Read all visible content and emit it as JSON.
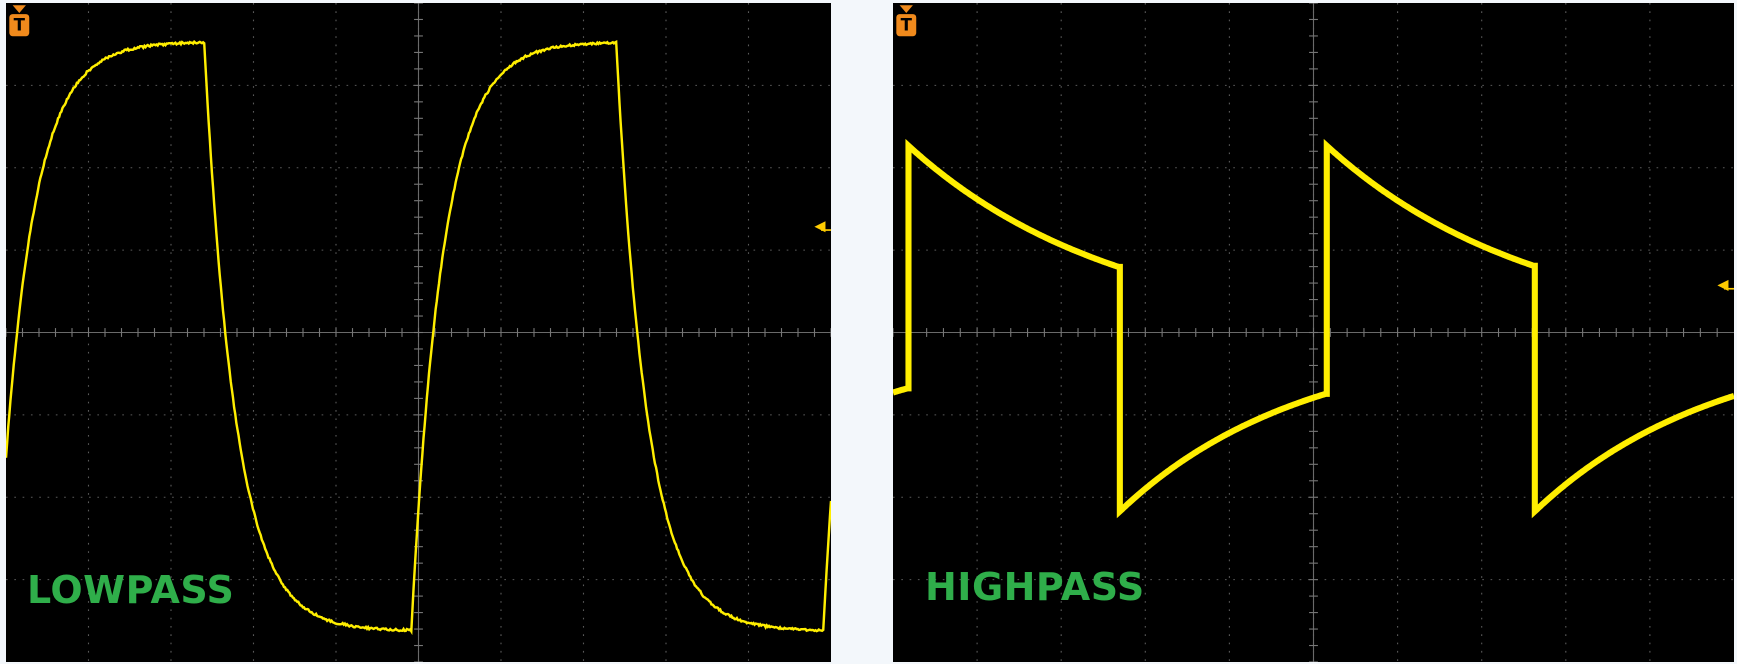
{
  "panels": [
    {
      "label": "LOWPASS",
      "trigger_marker": "T"
    },
    {
      "label": "HIGHPASS",
      "trigger_marker": "T"
    }
  ]
}
